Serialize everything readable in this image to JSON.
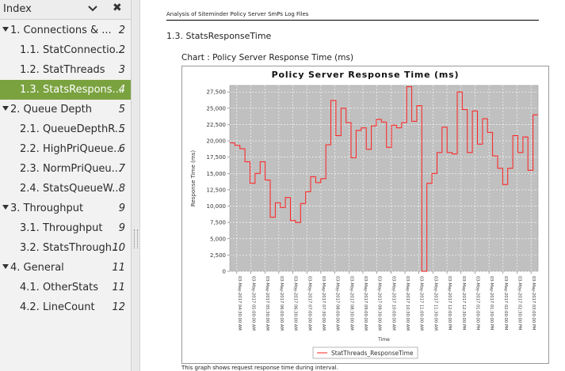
{
  "sidebar": {
    "title": "Index",
    "items": [
      {
        "label": "1. Connections & ...",
        "page": "2",
        "level": 0
      },
      {
        "label": "1.1. StatConnectio...",
        "page": "2",
        "level": 1
      },
      {
        "label": "1.2. StatThreads",
        "page": "3",
        "level": 1
      },
      {
        "label": "1.3. StatsRespons...",
        "page": "4",
        "level": 1,
        "selected": true
      },
      {
        "label": "2. Queue Depth",
        "page": "5",
        "level": 0
      },
      {
        "label": "2.1. QueueDepthR...",
        "page": "5",
        "level": 1
      },
      {
        "label": "2.2. HighPriQueue...",
        "page": "6",
        "level": 1
      },
      {
        "label": "2.3. NormPriQueu...",
        "page": "7",
        "level": 1
      },
      {
        "label": "2.4. StatsQueueW...",
        "page": "8",
        "level": 1
      },
      {
        "label": "3. Throughput",
        "page": "9",
        "level": 0
      },
      {
        "label": "3.1. Throughput",
        "page": "9",
        "level": 1
      },
      {
        "label": "3.2. StatsThrough...",
        "page": "10",
        "level": 1
      },
      {
        "label": "4. General",
        "page": "11",
        "level": 0
      },
      {
        "label": "4.1. OtherStats",
        "page": "11",
        "level": 1
      },
      {
        "label": "4.2. LineCount",
        "page": "12",
        "level": 1
      }
    ]
  },
  "document": {
    "header": "Analysis of Siteminder Policy Server SmPs Log Files",
    "section_title": "1.3. StatsResponseTime",
    "chart_caption": "Chart : Policy Server Response Time (ms)",
    "footer_text": "This graph shows request response time during interval."
  },
  "colors": {
    "selection": "#7aa23f",
    "plot_background": "#c0c0c0",
    "series_line": "#ff2020"
  },
  "chart_data": {
    "type": "line",
    "step": true,
    "title": "Policy Server Response Time (ms)",
    "xlabel": "Time",
    "ylabel": "Response Time (ms)",
    "ylim": [
      0,
      28500
    ],
    "yticks": [
      0,
      2500,
      5000,
      7500,
      10000,
      12500,
      15000,
      17500,
      20000,
      22500,
      25000,
      27500
    ],
    "ytick_labels": [
      "0",
      "2,500",
      "5,000",
      "7,500",
      "10,000",
      "12,500",
      "15,000",
      "17,500",
      "20,000",
      "22,500",
      "25,000",
      "27,500"
    ],
    "xtick_labels": [
      "03-May-2017 04:30:00 AM",
      "03-May-2017 05:00:00 AM",
      "03-May-2017 05:30:00 AM",
      "03-May-2017 06:00:00 AM",
      "03-May-2017 06:30:00 AM",
      "03-May-2017 07:00:00 AM",
      "03-May-2017 07:30:00 AM",
      "03-May-2017 08:00:00 AM",
      "03-May-2017 08:30:00 AM",
      "03-May-2017 09:00:00 AM",
      "03-May-2017 09:30:00 AM",
      "03-May-2017 10:00:00 AM",
      "03-May-2017 10:30:00 AM",
      "03-May-2017 11:00:00 AM",
      "03-May-2017 11:30:00 AM",
      "03-May-2017 12:00:00 PM",
      "03-May-2017 12:30:00 PM",
      "03-May-2017 01:00:00 PM",
      "03-May-2017 01:30:00 PM",
      "03-May-2017 02:00:00 PM",
      "03-May-2017 02:30:00 PM",
      "03-May-2017 03:00:00 PM"
    ],
    "grid": true,
    "legend_position": "bottom",
    "series": [
      {
        "name": "StatThreads_ResponseTime",
        "values": [
          19700,
          19300,
          18800,
          16800,
          13500,
          15000,
          16800,
          14000,
          8300,
          10500,
          9800,
          11300,
          7800,
          7500,
          10400,
          12200,
          14500,
          13600,
          14200,
          19400,
          26200,
          20800,
          25000,
          22800,
          17400,
          21600,
          22000,
          18700,
          22300,
          23300,
          22900,
          19000,
          22400,
          22000,
          22800,
          28300,
          23000,
          25400,
          0,
          13500,
          15000,
          18200,
          22100,
          18200,
          18000,
          27500,
          24800,
          18200,
          24600,
          19500,
          23400,
          21300,
          17700,
          15800,
          13300,
          15800,
          20800,
          18200,
          20600,
          15500,
          24000
        ]
      }
    ]
  }
}
